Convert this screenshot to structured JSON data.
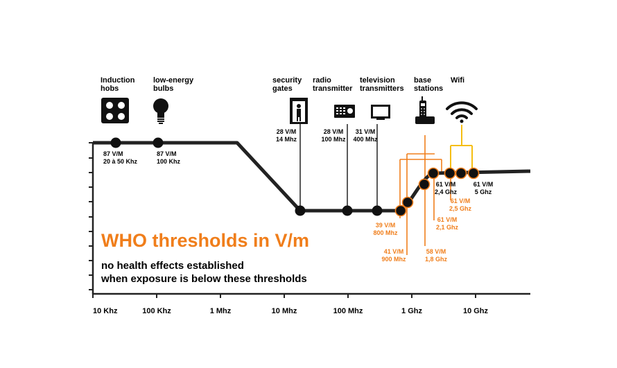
{
  "title": "WHO thresholds in V/m",
  "subtitle_line1": "no health effects established",
  "subtitle_line2": "when exposure is below these thresholds",
  "colors": {
    "line": "#222222",
    "orange": "#f07e1b",
    "yellow": "#f5be12",
    "text": "#000000"
  },
  "devices": [
    {
      "line1": "Induction",
      "line2": "hobs",
      "icon": "induction-hob-icon"
    },
    {
      "line1": "low-energy",
      "line2": "bulbs",
      "icon": "light-bulb-icon"
    },
    {
      "line1": "security",
      "line2": "gates",
      "icon": "security-gate-icon"
    },
    {
      "line1": "radio",
      "line2": "transmitter",
      "icon": "radio-icon"
    },
    {
      "line1": "television",
      "line2": "transmitters",
      "icon": "television-icon"
    },
    {
      "line1": "base",
      "line2": "stations",
      "icon": "base-station-phone-icon"
    },
    {
      "line1": "Wifi",
      "line2": "",
      "icon": "wifi-icon"
    }
  ],
  "chart_data": {
    "type": "line",
    "x_ticks": [
      "10 Khz",
      "100 Khz",
      "1 Mhz",
      "10 Mhz",
      "100 Mhz",
      "1 Ghz",
      "10 Ghz"
    ],
    "x_scale": "log",
    "annotations": [
      {
        "value": "87 V/M",
        "freq": "20 à 50 Khz",
        "color": "black"
      },
      {
        "value": "87 V/M",
        "freq": "100 Khz",
        "color": "black"
      },
      {
        "value": "28 V/M",
        "freq": "14 Mhz",
        "color": "black"
      },
      {
        "value": "28 V/M",
        "freq": "100 Mhz",
        "color": "black"
      },
      {
        "value": "31 V/M",
        "freq": "400 Mhz",
        "color": "black"
      },
      {
        "value": "39 V/M",
        "freq": "800 Mhz",
        "color": "orange"
      },
      {
        "value": "41 V/M",
        "freq": "900 Mhz",
        "color": "orange"
      },
      {
        "value": "58 V/M",
        "freq": "1,8 Ghz",
        "color": "orange"
      },
      {
        "value": "61 V/M",
        "freq": "2,1 Ghz",
        "color": "orange"
      },
      {
        "value": "61 V/M",
        "freq": "2,5 Ghz",
        "color": "orange"
      },
      {
        "value": "61 V/M",
        "freq": "2,4 Ghz",
        "color": "black"
      },
      {
        "value": "61 V/M",
        "freq": "5 Ghz",
        "color": "black"
      }
    ]
  }
}
